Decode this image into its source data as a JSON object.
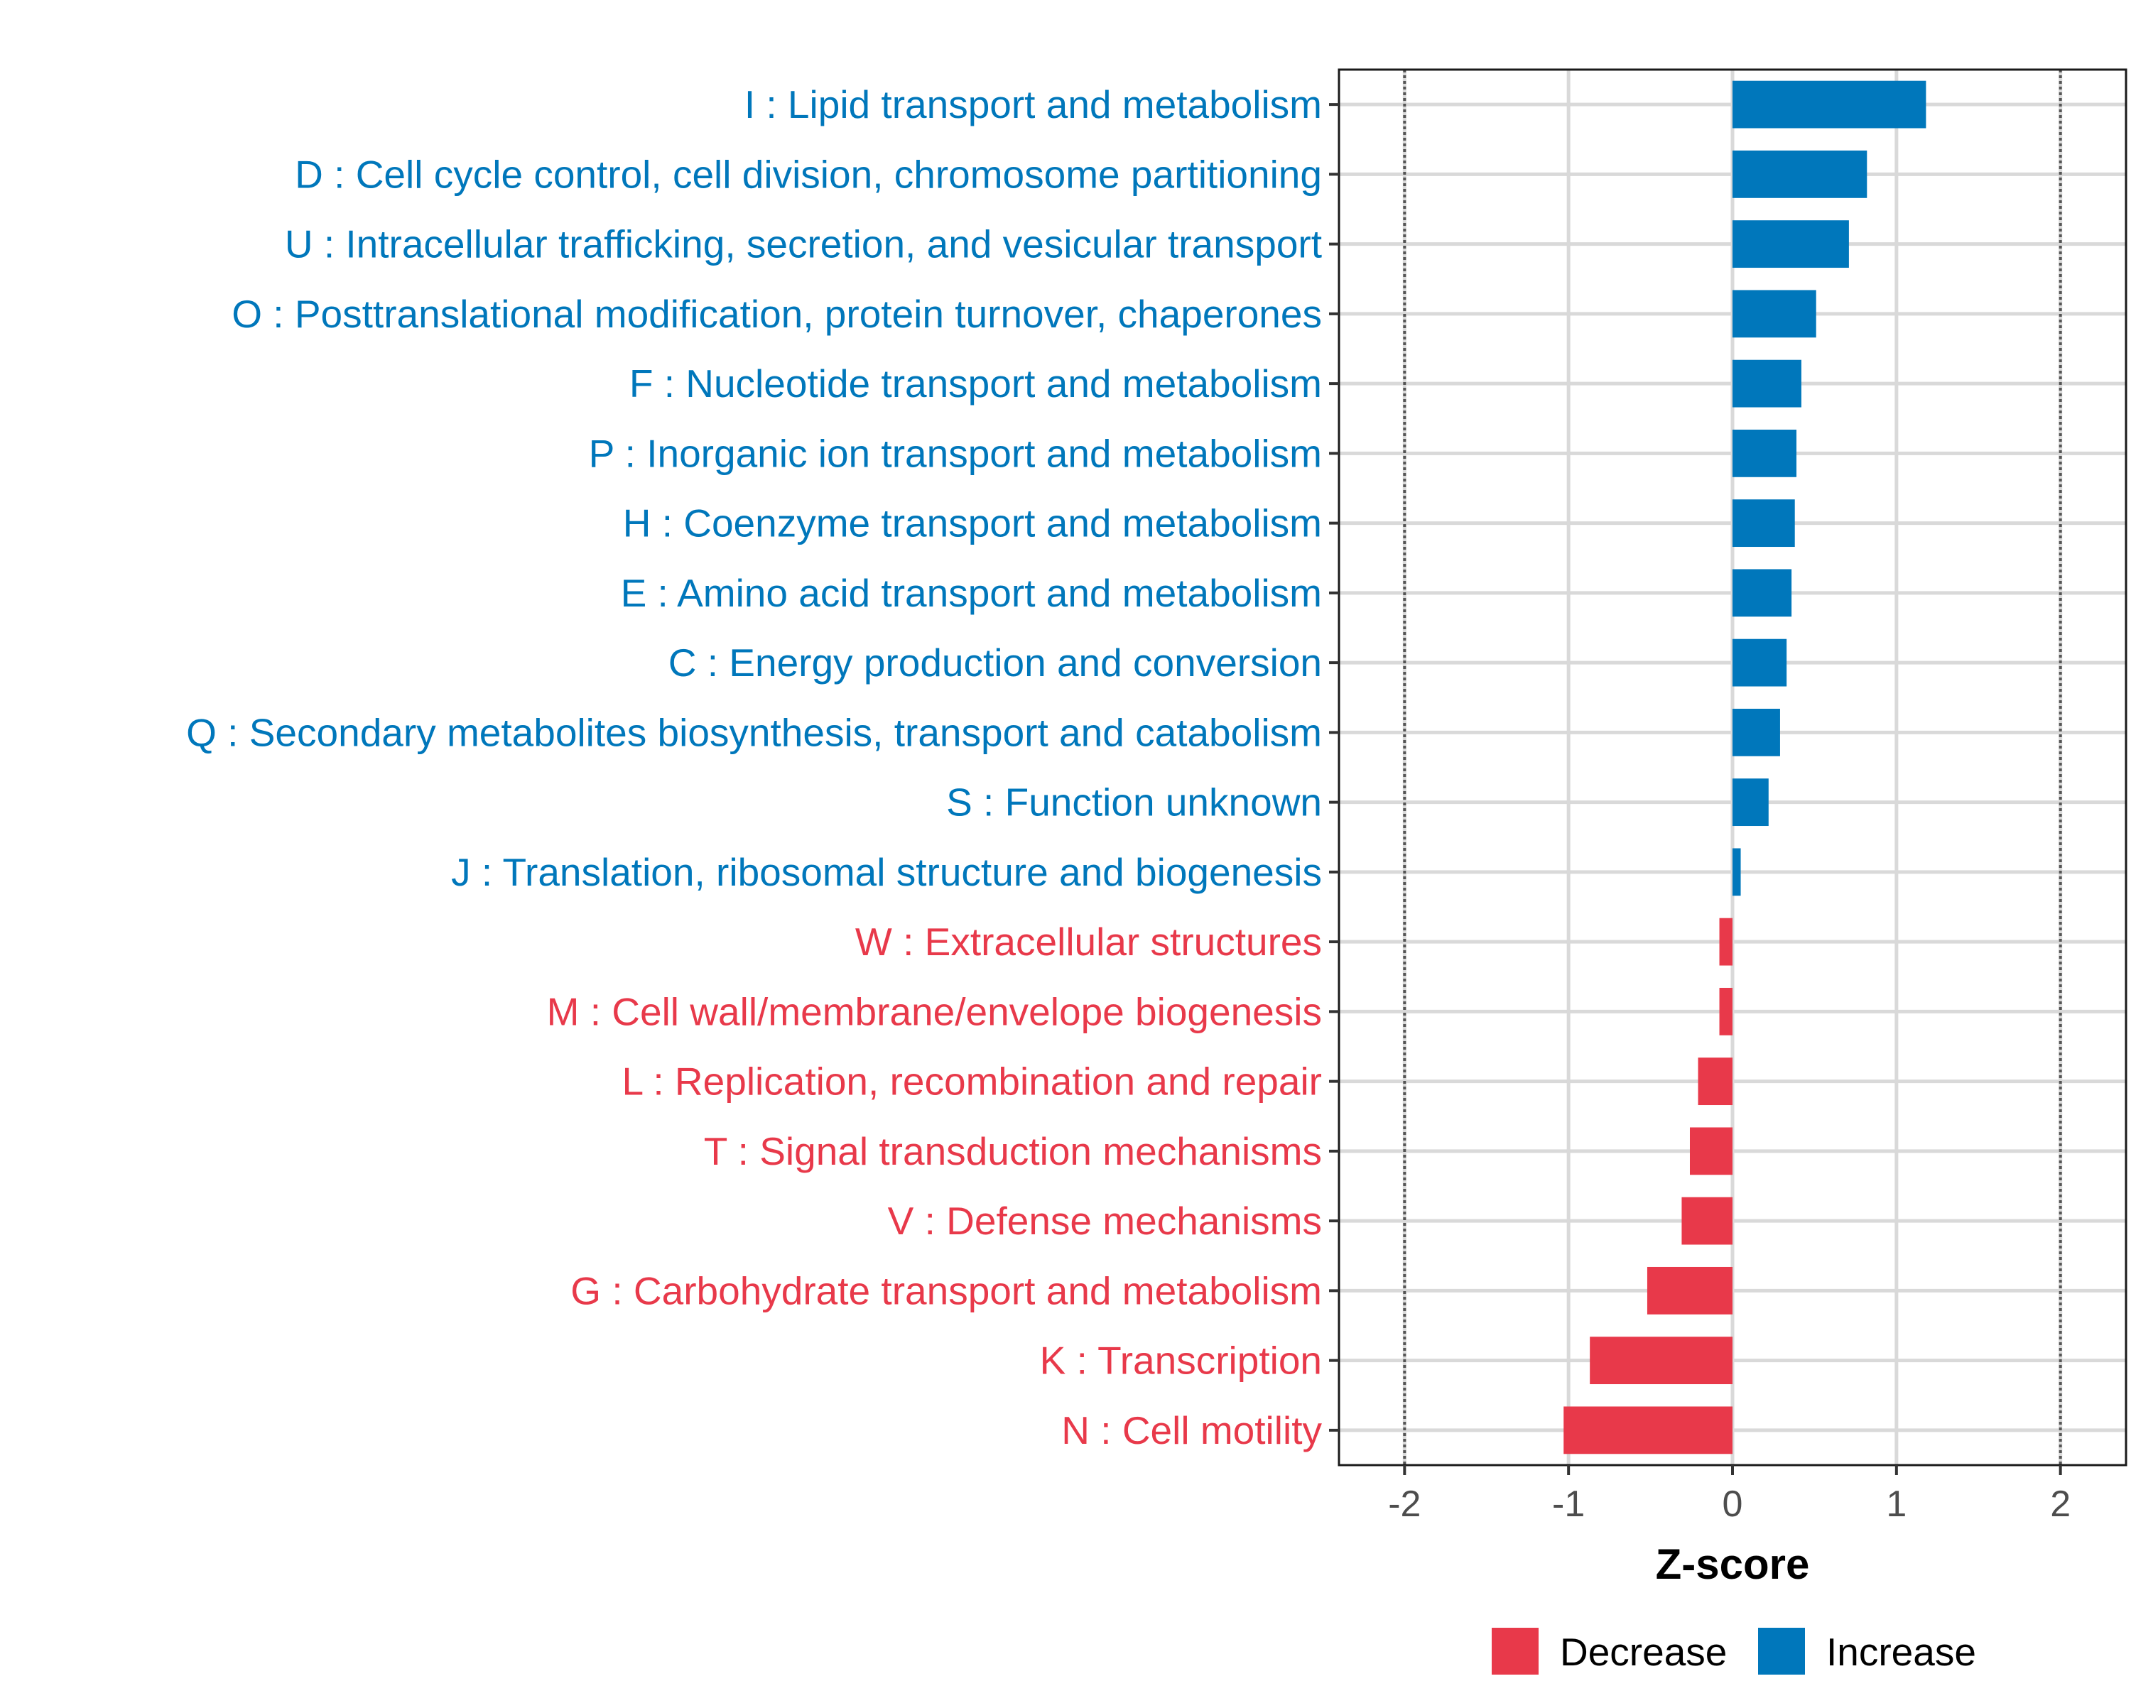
{
  "chart_data": {
    "type": "bar",
    "orientation": "horizontal",
    "title": "",
    "xlabel": "Z-score",
    "ylabel": "",
    "xlim": [
      -2.4,
      2.4
    ],
    "xticks": [
      -2,
      -1,
      0,
      1,
      2
    ],
    "xtick_labels": [
      "-2",
      "-1",
      "0",
      "1",
      "2"
    ],
    "reference_lines": [
      -2,
      2
    ],
    "grid": true,
    "colors": {
      "Decrease": "#E8394A",
      "Increase": "#0077BB"
    },
    "legend": {
      "position": "bottom",
      "entries": [
        {
          "label": "Decrease",
          "color": "#E8394A"
        },
        {
          "label": "Increase",
          "color": "#0077BB"
        }
      ]
    },
    "categories": [
      "I : Lipid transport and metabolism",
      "D : Cell cycle control, cell division, chromosome partitioning",
      "U : Intracellular trafficking, secretion, and vesicular transport",
      "O : Posttranslational modification, protein turnover, chaperones",
      "F : Nucleotide transport and metabolism",
      "P : Inorganic ion transport and metabolism",
      "H : Coenzyme transport and metabolism",
      "E : Amino acid transport and metabolism",
      "C : Energy production and conversion",
      "Q : Secondary metabolites biosynthesis, transport and catabolism",
      "S : Function unknown",
      "J : Translation, ribosomal structure and biogenesis",
      "W : Extracellular structures",
      "M : Cell wall/membrane/envelope biogenesis",
      "L : Replication, recombination and repair",
      "T : Signal transduction mechanisms",
      "V : Defense mechanisms",
      "G : Carbohydrate transport and metabolism",
      "K : Transcription",
      "N : Cell motility"
    ],
    "values": [
      1.18,
      0.82,
      0.71,
      0.51,
      0.42,
      0.39,
      0.38,
      0.36,
      0.33,
      0.29,
      0.22,
      0.05,
      -0.08,
      -0.08,
      -0.21,
      -0.26,
      -0.31,
      -0.52,
      -0.87,
      -1.03
    ],
    "groups": [
      "Increase",
      "Increase",
      "Increase",
      "Increase",
      "Increase",
      "Increase",
      "Increase",
      "Increase",
      "Increase",
      "Increase",
      "Increase",
      "Increase",
      "Decrease",
      "Decrease",
      "Decrease",
      "Decrease",
      "Decrease",
      "Decrease",
      "Decrease",
      "Decrease"
    ]
  }
}
